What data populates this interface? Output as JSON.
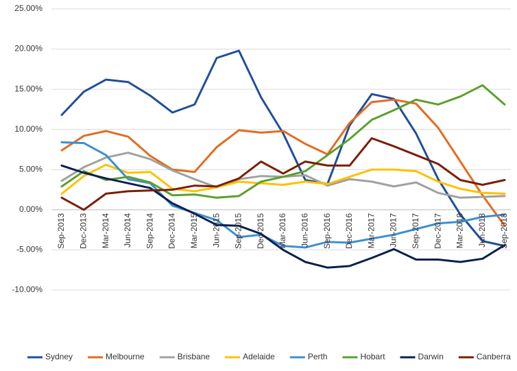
{
  "chart_data": {
    "type": "line",
    "categories": [
      "Sep-2013",
      "Dec-2013",
      "Mar-2014",
      "Jun-2014",
      "Sep-2014",
      "Dec-2014",
      "Mar-2015",
      "Jun-2015",
      "Sep-2015",
      "Dec-2015",
      "Mar-2016",
      "Jun-2016",
      "Sep-2016",
      "Dec-2016",
      "Mar-2017",
      "Jun-2017",
      "Sep-2017",
      "Dec-2017",
      "Mar-2018",
      "Jun-2018",
      "Sep-2018"
    ],
    "ylim": [
      -10,
      25
    ],
    "yticks": [
      {
        "value": -10,
        "label": "-10.00%"
      },
      {
        "value": -5,
        "label": "-5.00%"
      },
      {
        "value": 0,
        "label": "0.00%"
      },
      {
        "value": 5,
        "label": "5.00%"
      },
      {
        "value": 10,
        "label": "10.00%"
      },
      {
        "value": 15,
        "label": "15.00%"
      },
      {
        "value": 20,
        "label": "20.00%"
      },
      {
        "value": 25,
        "label": "25.00%"
      }
    ],
    "grid": true,
    "legend": "bottom",
    "series": [
      {
        "name": "Sydney",
        "color": "#1f4e9c",
        "values": [
          11.8,
          14.7,
          16.2,
          15.9,
          14.2,
          12.1,
          13.1,
          18.9,
          19.8,
          14.0,
          9.5,
          3.7,
          3.2,
          10.5,
          14.4,
          13.8,
          9.5,
          3.8,
          -0.6,
          -3.9,
          -4.5
        ]
      },
      {
        "name": "Melbourne",
        "color": "#e36c1d",
        "values": [
          7.4,
          9.2,
          9.8,
          9.1,
          6.7,
          5.0,
          4.7,
          7.8,
          9.9,
          9.6,
          9.8,
          8.2,
          6.9,
          10.8,
          13.4,
          13.7,
          13.2,
          10.2,
          6.0,
          1.8,
          -2.0
        ]
      },
      {
        "name": "Brisbane",
        "color": "#a0a0a0",
        "values": [
          3.6,
          5.3,
          6.5,
          7.1,
          6.3,
          4.9,
          3.8,
          2.8,
          3.8,
          4.2,
          4.1,
          4.3,
          3.0,
          3.8,
          3.5,
          2.9,
          3.4,
          2.1,
          1.5,
          1.6,
          1.7
        ]
      },
      {
        "name": "Adelaide",
        "color": "#ffc000",
        "values": [
          2.0,
          4.2,
          5.6,
          4.6,
          4.7,
          2.6,
          2.3,
          2.8,
          3.5,
          3.3,
          3.1,
          3.5,
          3.2,
          4.1,
          5.0,
          5.0,
          4.8,
          3.5,
          2.6,
          2.1,
          2.0
        ]
      },
      {
        "name": "Perth",
        "color": "#3b8fd4",
        "values": [
          8.4,
          8.3,
          6.8,
          3.8,
          3.3,
          0.5,
          -0.4,
          -1.3,
          -3.4,
          -3.1,
          -4.5,
          -4.7,
          -4.0,
          -4.1,
          -3.6,
          -3.1,
          -2.4,
          -1.7,
          -1.5,
          -0.9,
          -0.6
        ]
      },
      {
        "name": "Hobart",
        "color": "#5aa02c",
        "values": [
          2.9,
          4.8,
          3.7,
          4.1,
          3.4,
          1.8,
          1.9,
          1.5,
          1.7,
          3.5,
          4.1,
          4.8,
          6.8,
          8.8,
          11.2,
          12.4,
          13.7,
          13.1,
          14.1,
          15.5,
          13.1
        ]
      },
      {
        "name": "Darwin",
        "color": "#0a1f4e",
        "values": [
          5.5,
          4.6,
          3.9,
          3.3,
          2.7,
          0.8,
          -0.5,
          -1.9,
          -2.0,
          -3.0,
          -5.0,
          -6.5,
          -7.2,
          -7.0,
          -6.0,
          -4.9,
          -6.2,
          -6.2,
          -6.5,
          -6.1,
          -4.4
        ]
      },
      {
        "name": "Canberra",
        "color": "#7a1e05",
        "values": [
          1.5,
          0.0,
          2.0,
          2.3,
          2.4,
          2.5,
          3.0,
          2.9,
          3.9,
          6.0,
          4.5,
          6.0,
          5.5,
          5.5,
          8.9,
          7.9,
          6.8,
          5.7,
          3.7,
          3.1,
          3.7
        ]
      }
    ]
  }
}
